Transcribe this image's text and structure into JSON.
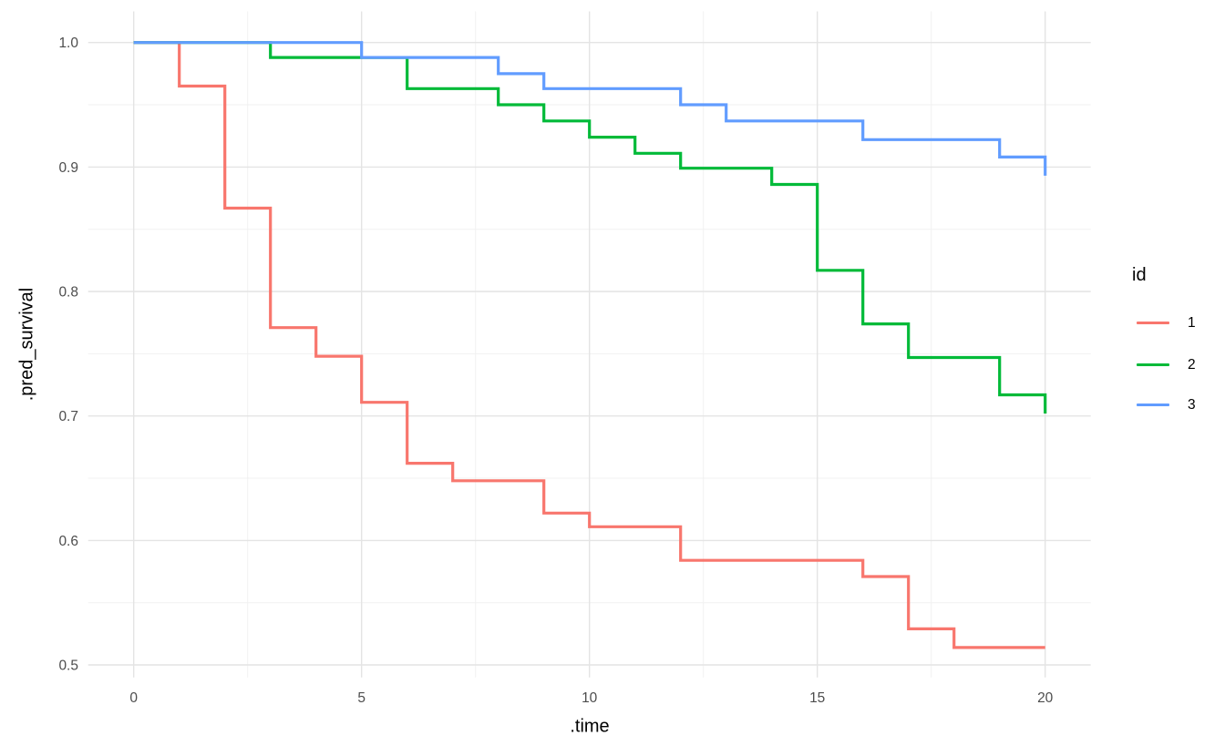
{
  "chart_data": {
    "type": "line",
    "step": "hv",
    "title": "",
    "xlabel": ".time",
    "ylabel": ".pred_survival",
    "xlim": [
      -1,
      21
    ],
    "ylim": [
      0.49,
      1.025
    ],
    "grid": "major+minor",
    "legend_position": "right",
    "x_ticks": [
      {
        "v": 0,
        "label": "0"
      },
      {
        "v": 5,
        "label": "5"
      },
      {
        "v": 10,
        "label": "10"
      },
      {
        "v": 15,
        "label": "15"
      },
      {
        "v": 20,
        "label": "20"
      }
    ],
    "x_minor": [
      2.5,
      7.5,
      12.5,
      17.5
    ],
    "y_ticks": [
      {
        "v": 1.0,
        "label": "1.0"
      },
      {
        "v": 0.9,
        "label": "0.9"
      },
      {
        "v": 0.8,
        "label": "0.8"
      },
      {
        "v": 0.7,
        "label": "0.7"
      },
      {
        "v": 0.6,
        "label": "0.6"
      },
      {
        "v": 0.5,
        "label": "0.5"
      }
    ],
    "y_minor": [
      0.95,
      0.85,
      0.75,
      0.65,
      0.55
    ],
    "legend": {
      "title": "id",
      "items": [
        {
          "label": "1",
          "color": "#F8766D"
        },
        {
          "label": "2",
          "color": "#00BA38"
        },
        {
          "label": "3",
          "color": "#619CFF"
        }
      ]
    },
    "series": [
      {
        "id": "1",
        "color": "#F8766D",
        "points": [
          [
            0,
            1.0
          ],
          [
            1,
            0.965
          ],
          [
            2,
            0.867
          ],
          [
            3,
            0.771
          ],
          [
            4,
            0.748
          ],
          [
            5,
            0.711
          ],
          [
            6,
            0.662
          ],
          [
            7,
            0.648
          ],
          [
            9,
            0.622
          ],
          [
            10,
            0.611
          ],
          [
            12,
            0.584
          ],
          [
            16,
            0.571
          ],
          [
            17,
            0.529
          ],
          [
            18,
            0.514
          ],
          [
            20,
            0.514
          ]
        ]
      },
      {
        "id": "2",
        "color": "#00BA38",
        "points": [
          [
            0,
            1.0
          ],
          [
            3,
            0.988
          ],
          [
            6,
            0.963
          ],
          [
            8,
            0.95
          ],
          [
            9,
            0.937
          ],
          [
            10,
            0.924
          ],
          [
            11,
            0.911
          ],
          [
            12,
            0.899
          ],
          [
            14,
            0.886
          ],
          [
            15,
            0.817
          ],
          [
            16,
            0.774
          ],
          [
            17,
            0.747
          ],
          [
            19,
            0.717
          ],
          [
            20,
            0.702
          ]
        ]
      },
      {
        "id": "3",
        "color": "#619CFF",
        "points": [
          [
            0,
            1.0
          ],
          [
            5,
            0.988
          ],
          [
            8,
            0.975
          ],
          [
            9,
            0.963
          ],
          [
            12,
            0.95
          ],
          [
            13,
            0.937
          ],
          [
            16,
            0.922
          ],
          [
            19,
            0.908
          ],
          [
            20,
            0.893
          ]
        ]
      }
    ],
    "theme": {
      "background": "#FFFFFF",
      "grid_major_color": "#E4E4E4",
      "grid_minor_color": "#F1F1F1",
      "tick_label_color": "#4D4D4D",
      "title_color": "#000000"
    }
  }
}
